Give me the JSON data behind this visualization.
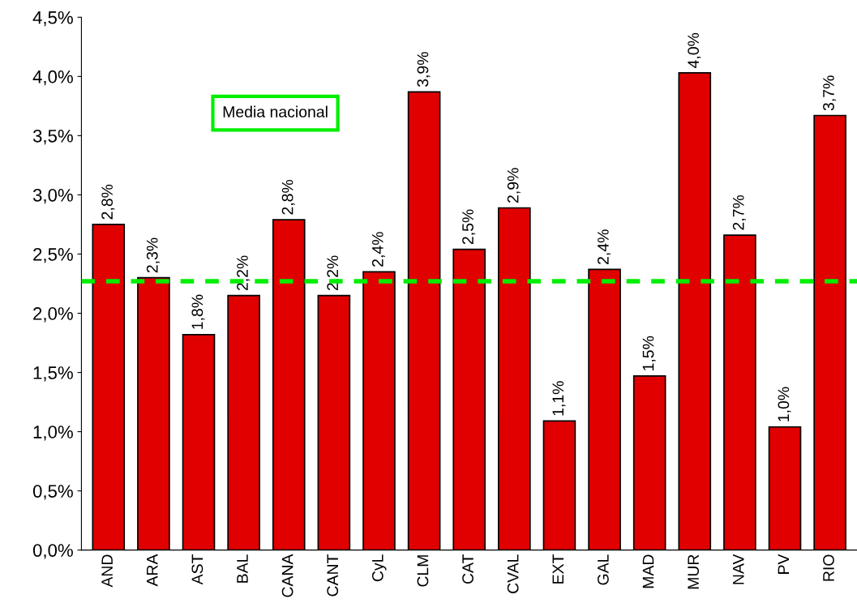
{
  "chart_data": {
    "type": "bar",
    "categories": [
      "AND",
      "ARA",
      "AST",
      "BAL",
      "CANA",
      "CANT",
      "CyL",
      "CLM",
      "CAT",
      "CVAL",
      "EXT",
      "GAL",
      "MAD",
      "MUR",
      "NAV",
      "PV",
      "RIO"
    ],
    "values": [
      2.75,
      2.3,
      1.82,
      2.15,
      2.79,
      2.15,
      2.35,
      3.87,
      2.54,
      2.89,
      1.09,
      2.37,
      1.47,
      4.03,
      2.66,
      1.04,
      3.67
    ],
    "value_labels": [
      "2,8%",
      "2,3%",
      "1,8%",
      "2,2%",
      "2,8%",
      "2,2%",
      "2,4%",
      "3,9%",
      "2,5%",
      "2,9%",
      "1,1%",
      "2,4%",
      "1,5%",
      "4,0%",
      "2,7%",
      "1,0%",
      "3,7%"
    ],
    "color": "#e00000",
    "ylim": [
      0,
      4.5
    ],
    "yticks": [
      {
        "value": 0,
        "label": "0,0%"
      },
      {
        "value": 0.5,
        "label": "0,5%"
      },
      {
        "value": 1,
        "label": "1,0%"
      },
      {
        "value": 1.5,
        "label": "1,5%"
      },
      {
        "value": 2,
        "label": "2,0%"
      },
      {
        "value": 2.5,
        "label": "2,5%"
      },
      {
        "value": 3,
        "label": "3,0%"
      },
      {
        "value": 3.5,
        "label": "3,5%"
      },
      {
        "value": 4,
        "label": "4,0%"
      },
      {
        "value": 4.5,
        "label": "4,5%"
      }
    ],
    "ref_lines": [
      {
        "axis": "y",
        "value": 2.27,
        "color": "#00ee00",
        "line_style": "dashed"
      }
    ],
    "annotations": [
      "Media nacional"
    ],
    "grid": false,
    "legend": false
  }
}
